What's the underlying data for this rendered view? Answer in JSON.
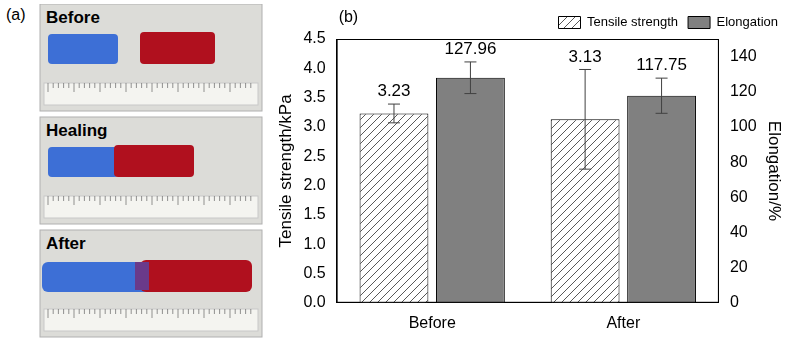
{
  "panel_a": {
    "label": "(a)",
    "photos": [
      "Before",
      "Healing",
      "After"
    ]
  },
  "chart_data": {
    "type": "bar",
    "annotations": [
      "(b)"
    ],
    "categories": [
      "Before",
      "After"
    ],
    "y_label": "Tensile strength/kPa",
    "y2_label": "Elongation/%",
    "ylim": [
      0,
      4.5
    ],
    "yticks": [
      {
        "value": 0,
        "label": "0.0"
      },
      {
        "value": 0.5,
        "label": "0.5"
      },
      {
        "value": 1,
        "label": "1.0"
      },
      {
        "value": 1.5,
        "label": "1.5"
      },
      {
        "value": 2,
        "label": "2.0"
      },
      {
        "value": 2.5,
        "label": "2.5"
      },
      {
        "value": 3,
        "label": "3.0"
      },
      {
        "value": 3.5,
        "label": "3.5"
      },
      {
        "value": 4,
        "label": "4.0"
      },
      {
        "value": 4.5,
        "label": "4.5"
      }
    ],
    "y2lim": [
      0,
      150
    ],
    "y2ticks": [
      0,
      20,
      40,
      60,
      80,
      100,
      120,
      140
    ],
    "series": [
      {
        "name": "Tensile strength",
        "color": "#595959",
        "values": [
          3.23,
          3.13
        ],
        "errors": [
          0.16,
          0.85
        ]
      },
      {
        "name": "Elongation",
        "color": "#808080",
        "values": [
          127.96,
          117.75
        ],
        "errors": [
          9,
          10
        ],
        "axis": "y2"
      }
    ],
    "data_labels": true,
    "grid": false,
    "legend": "top-right"
  }
}
